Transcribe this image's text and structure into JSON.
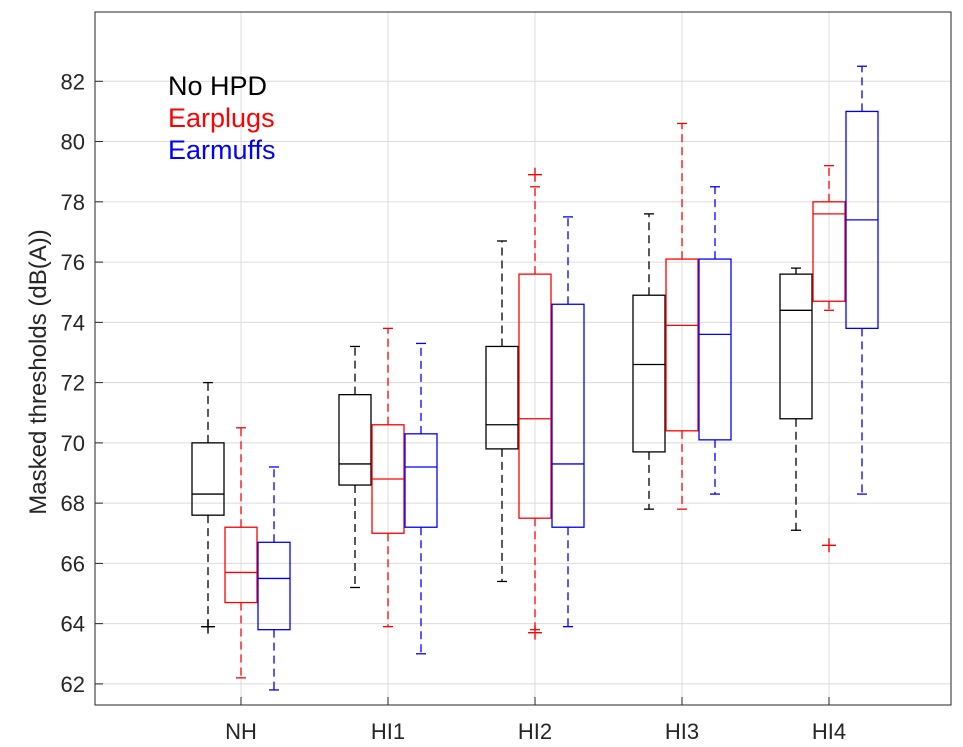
{
  "chart_data": {
    "type": "box",
    "title": "",
    "xlabel": "",
    "ylabel": "Masked thresholds (dB(A))",
    "ylim": [
      61.3,
      84.3
    ],
    "yticks": [
      62,
      64,
      66,
      68,
      70,
      72,
      74,
      76,
      78,
      80,
      82
    ],
    "grid": true,
    "legend_position": "top-left",
    "categories": [
      "NH",
      "HI1",
      "HI2",
      "HI3",
      "HI4"
    ],
    "series": [
      {
        "name": "No HPD",
        "color": "#000000",
        "boxes": [
          {
            "whisker_low": 63.9,
            "q1": 67.6,
            "median": 68.3,
            "q3": 70.0,
            "whisker_high": 72.0,
            "outliers": [
              63.9
            ]
          },
          {
            "whisker_low": 65.2,
            "q1": 68.6,
            "median": 69.3,
            "q3": 71.6,
            "whisker_high": 73.2,
            "outliers": []
          },
          {
            "whisker_low": 65.4,
            "q1": 69.8,
            "median": 70.6,
            "q3": 73.2,
            "whisker_high": 76.7,
            "outliers": []
          },
          {
            "whisker_low": 67.8,
            "q1": 69.7,
            "median": 72.6,
            "q3": 74.9,
            "whisker_high": 77.6,
            "outliers": []
          },
          {
            "whisker_low": 67.1,
            "q1": 70.8,
            "median": 74.4,
            "q3": 75.6,
            "whisker_high": 75.8,
            "outliers": []
          }
        ]
      },
      {
        "name": "Earplugs",
        "color": "#ff0000",
        "boxes": [
          {
            "whisker_low": 62.2,
            "q1": 64.7,
            "median": 65.7,
            "q3": 67.2,
            "whisker_high": 70.5,
            "outliers": []
          },
          {
            "whisker_low": 63.9,
            "q1": 67.0,
            "median": 68.8,
            "q3": 70.6,
            "whisker_high": 73.8,
            "outliers": []
          },
          {
            "whisker_low": 63.8,
            "q1": 67.5,
            "median": 70.8,
            "q3": 75.6,
            "whisker_high": 78.5,
            "outliers": [
              63.7,
              78.9
            ]
          },
          {
            "whisker_low": 67.8,
            "q1": 70.4,
            "median": 73.9,
            "q3": 76.1,
            "whisker_high": 80.6,
            "outliers": []
          },
          {
            "whisker_low": 74.4,
            "q1": 74.7,
            "median": 77.6,
            "q3": 78.0,
            "whisker_high": 79.2,
            "outliers": [
              66.6
            ]
          }
        ]
      },
      {
        "name": "Earmuffs",
        "color": "#0000ff",
        "boxes": [
          {
            "whisker_low": 61.8,
            "q1": 63.8,
            "median": 65.5,
            "q3": 66.7,
            "whisker_high": 69.2,
            "outliers": []
          },
          {
            "whisker_low": 63.0,
            "q1": 67.2,
            "median": 69.2,
            "q3": 70.3,
            "whisker_high": 73.3,
            "outliers": []
          },
          {
            "whisker_low": 63.9,
            "q1": 67.2,
            "median": 69.3,
            "q3": 74.6,
            "whisker_high": 77.5,
            "outliers": []
          },
          {
            "whisker_low": 68.3,
            "q1": 70.1,
            "median": 73.6,
            "q3": 76.1,
            "whisker_high": 78.5,
            "outliers": []
          },
          {
            "whisker_low": 68.3,
            "q1": 73.8,
            "median": 77.4,
            "q3": 81.0,
            "whisker_high": 82.5,
            "outliers": []
          }
        ]
      }
    ]
  }
}
